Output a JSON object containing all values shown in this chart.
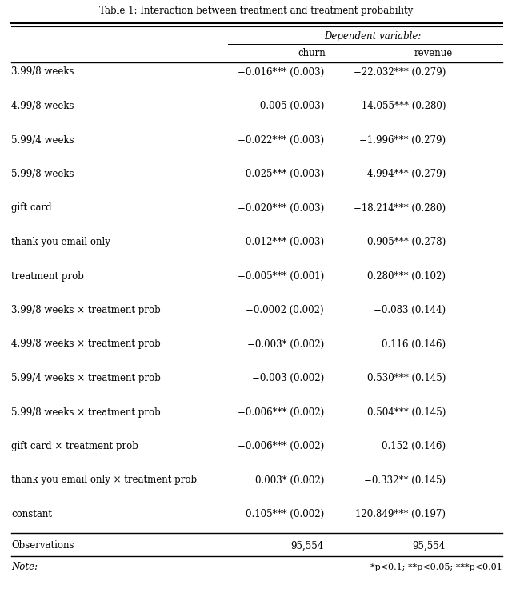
{
  "title": "Table 1: Interaction between treatment and treatment probability",
  "dep_var_header": "Dependent variable:",
  "col_headers": [
    "",
    "churn",
    "revenue"
  ],
  "rows": [
    [
      "3.99/8 weeks",
      "−0.016*** (0.003)",
      "−22.032*** (0.279)"
    ],
    [
      "4.99/8 weeks",
      "−0.005 (0.003)",
      "−14.055*** (0.280)"
    ],
    [
      "5.99/4 weeks",
      "−0.022*** (0.003)",
      "−1.996*** (0.279)"
    ],
    [
      "5.99/8 weeks",
      "−0.025*** (0.003)",
      "−4.994*** (0.279)"
    ],
    [
      "gift card",
      "−0.020*** (0.003)",
      "−18.214*** (0.280)"
    ],
    [
      "thank you email only",
      "−0.012*** (0.003)",
      "0.905*** (0.278)"
    ],
    [
      "treatment prob",
      "−0.005*** (0.001)",
      "0.280*** (0.102)"
    ],
    [
      "3.99/8 weeks × treatment prob",
      "−0.0002 (0.002)",
      "−0.083 (0.144)"
    ],
    [
      "4.99/8 weeks × treatment prob",
      "−0.003* (0.002)",
      "0.116 (0.146)"
    ],
    [
      "5.99/4 weeks × treatment prob",
      "−0.003 (0.002)",
      "0.530*** (0.145)"
    ],
    [
      "5.99/8 weeks × treatment prob",
      "−0.006*** (0.002)",
      "0.504*** (0.145)"
    ],
    [
      "gift card × treatment prob",
      "−0.006*** (0.002)",
      "0.152 (0.146)"
    ],
    [
      "thank you email only × treatment prob",
      "0.003* (0.002)",
      "−0.332** (0.145)"
    ],
    [
      "constant",
      "0.105*** (0.002)",
      "120.849*** (0.197)"
    ]
  ],
  "obs_row": [
    "Observations",
    "95,554",
    "95,554"
  ],
  "note_left": "Note:",
  "note_right": "*p<0.1; **p<0.05; ***p<0.01",
  "bg_color": "#ffffff",
  "text_color": "#000000",
  "font_size": 8.5,
  "title_font_size": 8.5
}
